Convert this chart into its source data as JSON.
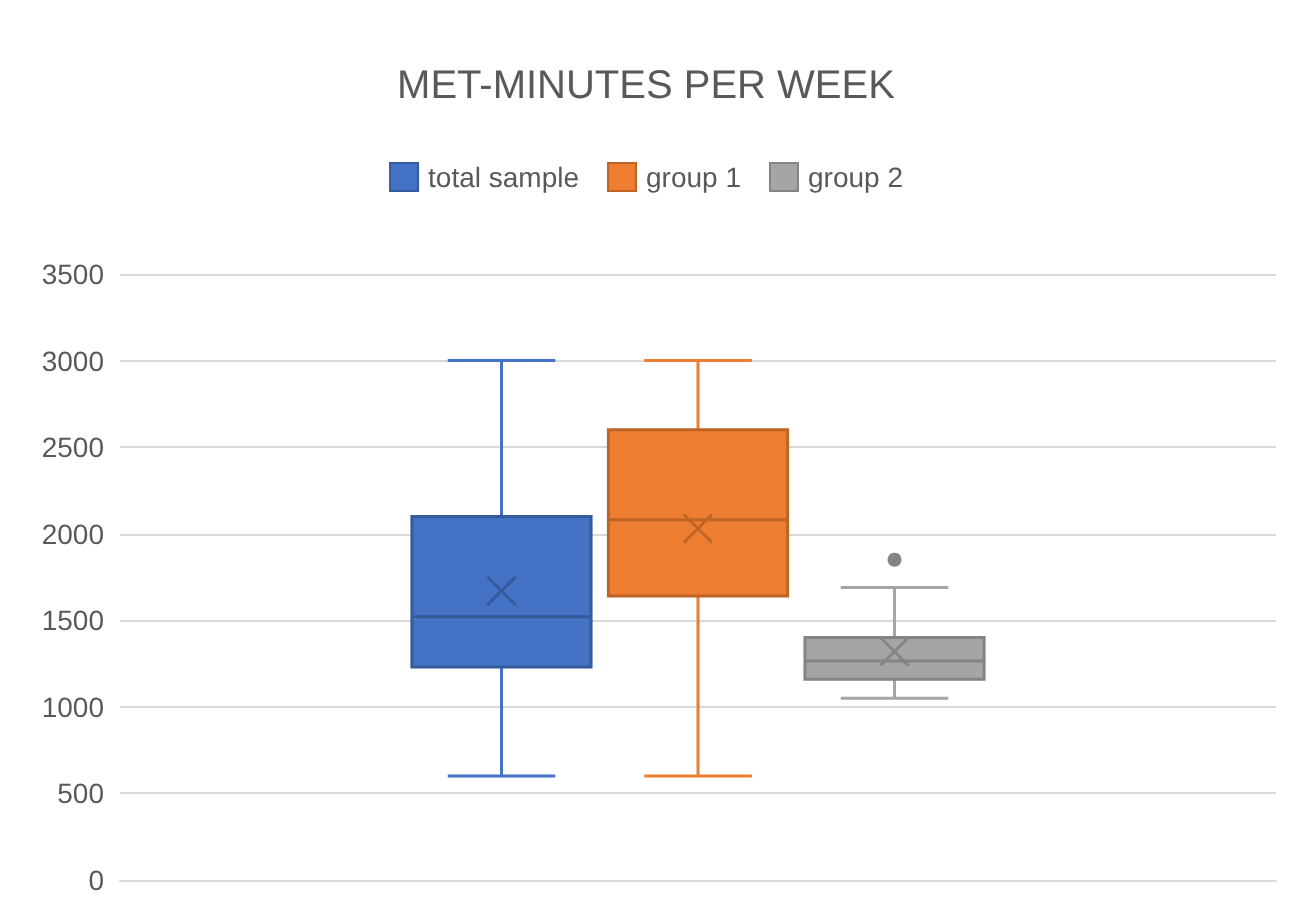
{
  "chart_data": {
    "type": "box",
    "title": "MET-MINUTES PER WEEK",
    "categories": [
      null
    ],
    "series": [
      {
        "name": "total sample",
        "color": "#4472c4",
        "boxes": [
          {
            "low": 600,
            "q1": 1230,
            "median": 1520,
            "q3": 2100,
            "high": 3000,
            "mean": 1670
          }
        ]
      },
      {
        "name": "group 1",
        "color": "#ed7d31",
        "boxes": [
          {
            "low": 600,
            "q1": 1640,
            "median": 2080,
            "q3": 2600,
            "high": 3000,
            "mean": 2030
          }
        ]
      },
      {
        "name": "group 2",
        "color": "#a5a5a5",
        "boxes": [
          {
            "low": 1050,
            "q1": 1160,
            "median": 1265,
            "q3": 1400,
            "high": 1690,
            "mean": 1320,
            "outliers": [
              1850
            ]
          }
        ]
      }
    ],
    "ylim": [
      0,
      3500
    ],
    "yticks": [
      0,
      500,
      1000,
      1500,
      2000,
      2500,
      3000,
      3500
    ],
    "grid": "y",
    "legend": "top"
  }
}
